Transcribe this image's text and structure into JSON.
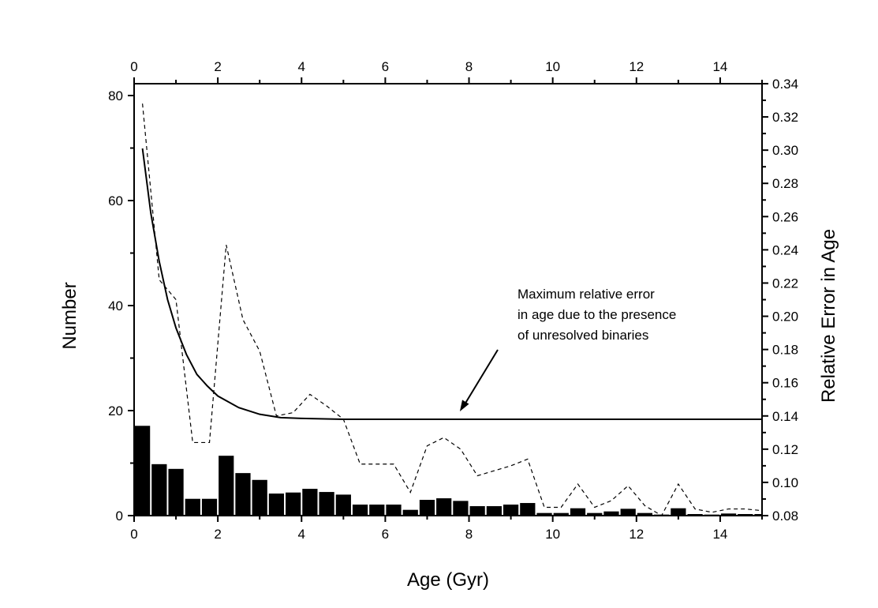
{
  "chart_data": {
    "type": "bar",
    "xlabel": "Age (Gyr)",
    "ylabel": "Number",
    "y2label": "Relative Error in Age",
    "xlim": [
      0,
      15
    ],
    "ylim": [
      0,
      82
    ],
    "y2lim": [
      0.08,
      0.34
    ],
    "x_ticks": [
      "0",
      "2",
      "4",
      "6",
      "8",
      "10",
      "12",
      "14"
    ],
    "x_top_ticks": [
      "0",
      "2",
      "4",
      "6",
      "8",
      "10",
      "12",
      "14"
    ],
    "y_ticks": [
      "0",
      "20",
      "40",
      "60",
      "80"
    ],
    "y2_ticks": [
      "0.08",
      "0.10",
      "0.12",
      "0.14",
      "0.16",
      "0.18",
      "0.20",
      "0.22",
      "0.24",
      "0.26",
      "0.28",
      "0.30",
      "0.32",
      "0.34"
    ],
    "grid": false,
    "bars": {
      "axis": "left",
      "bin_width": 0.4,
      "x": [
        0.2,
        0.6,
        1.0,
        1.4,
        1.8,
        2.2,
        2.6,
        3.0,
        3.4,
        3.8,
        4.2,
        4.6,
        5.0,
        5.4,
        5.8,
        6.2,
        6.6,
        7.0,
        7.4,
        7.8,
        8.2,
        8.6,
        9.0,
        9.4,
        9.8,
        10.2,
        10.6,
        11.0,
        11.4,
        11.8,
        12.2,
        12.6,
        13.0,
        13.4,
        13.8,
        14.2,
        14.6,
        15.0
      ],
      "values": [
        17.1,
        9.8,
        8.9,
        3.2,
        3.2,
        11.4,
        8.1,
        6.8,
        4.2,
        4.4,
        5.1,
        4.5,
        4.0,
        2.1,
        2.1,
        2.1,
        1.1,
        3.0,
        3.3,
        2.8,
        1.8,
        1.8,
        2.1,
        2.4,
        0.5,
        0.5,
        1.4,
        0.5,
        0.8,
        1.3,
        0.5,
        0.2,
        1.4,
        0.3,
        0.2,
        0.4,
        0.3,
        0.3
      ],
      "color": "#000000"
    },
    "dashed_series": {
      "axis": "right",
      "style": "dashed",
      "x": [
        0.2,
        0.6,
        1.0,
        1.4,
        1.8,
        2.2,
        2.6,
        3.0,
        3.4,
        3.8,
        4.2,
        4.6,
        5.0,
        5.4,
        5.8,
        6.2,
        6.6,
        7.0,
        7.4,
        7.8,
        8.2,
        8.6,
        9.0,
        9.4,
        9.8,
        10.2,
        10.6,
        11.0,
        11.4,
        11.8,
        12.2,
        12.6,
        13.0,
        13.4,
        13.8,
        14.2,
        14.6,
        15.0
      ],
      "values": [
        0.328,
        0.222,
        0.21,
        0.124,
        0.124,
        0.243,
        0.198,
        0.179,
        0.14,
        0.142,
        0.153,
        0.146,
        0.138,
        0.111,
        0.111,
        0.111,
        0.094,
        0.122,
        0.127,
        0.12,
        0.104,
        0.107,
        0.11,
        0.114,
        0.085,
        0.085,
        0.099,
        0.085,
        0.089,
        0.098,
        0.086,
        0.08,
        0.099,
        0.084,
        0.082,
        0.084,
        0.084,
        0.083
      ]
    },
    "solid_series": {
      "axis": "right",
      "style": "solid",
      "x": [
        0.2,
        0.4,
        0.6,
        0.8,
        1.0,
        1.25,
        1.5,
        1.75,
        2.0,
        2.5,
        3.0,
        3.5,
        4.0,
        5.0,
        15.0
      ],
      "values": [
        0.301,
        0.262,
        0.233,
        0.21,
        0.193,
        0.177,
        0.165,
        0.158,
        0.152,
        0.145,
        0.141,
        0.139,
        0.1385,
        0.138,
        0.138
      ]
    },
    "annotation": {
      "lines": [
        "Maximum relative error",
        "in age due to the presence",
        "of unresolved binaries"
      ],
      "arrow_to": {
        "x": 7.8,
        "y2": 0.138
      }
    }
  }
}
